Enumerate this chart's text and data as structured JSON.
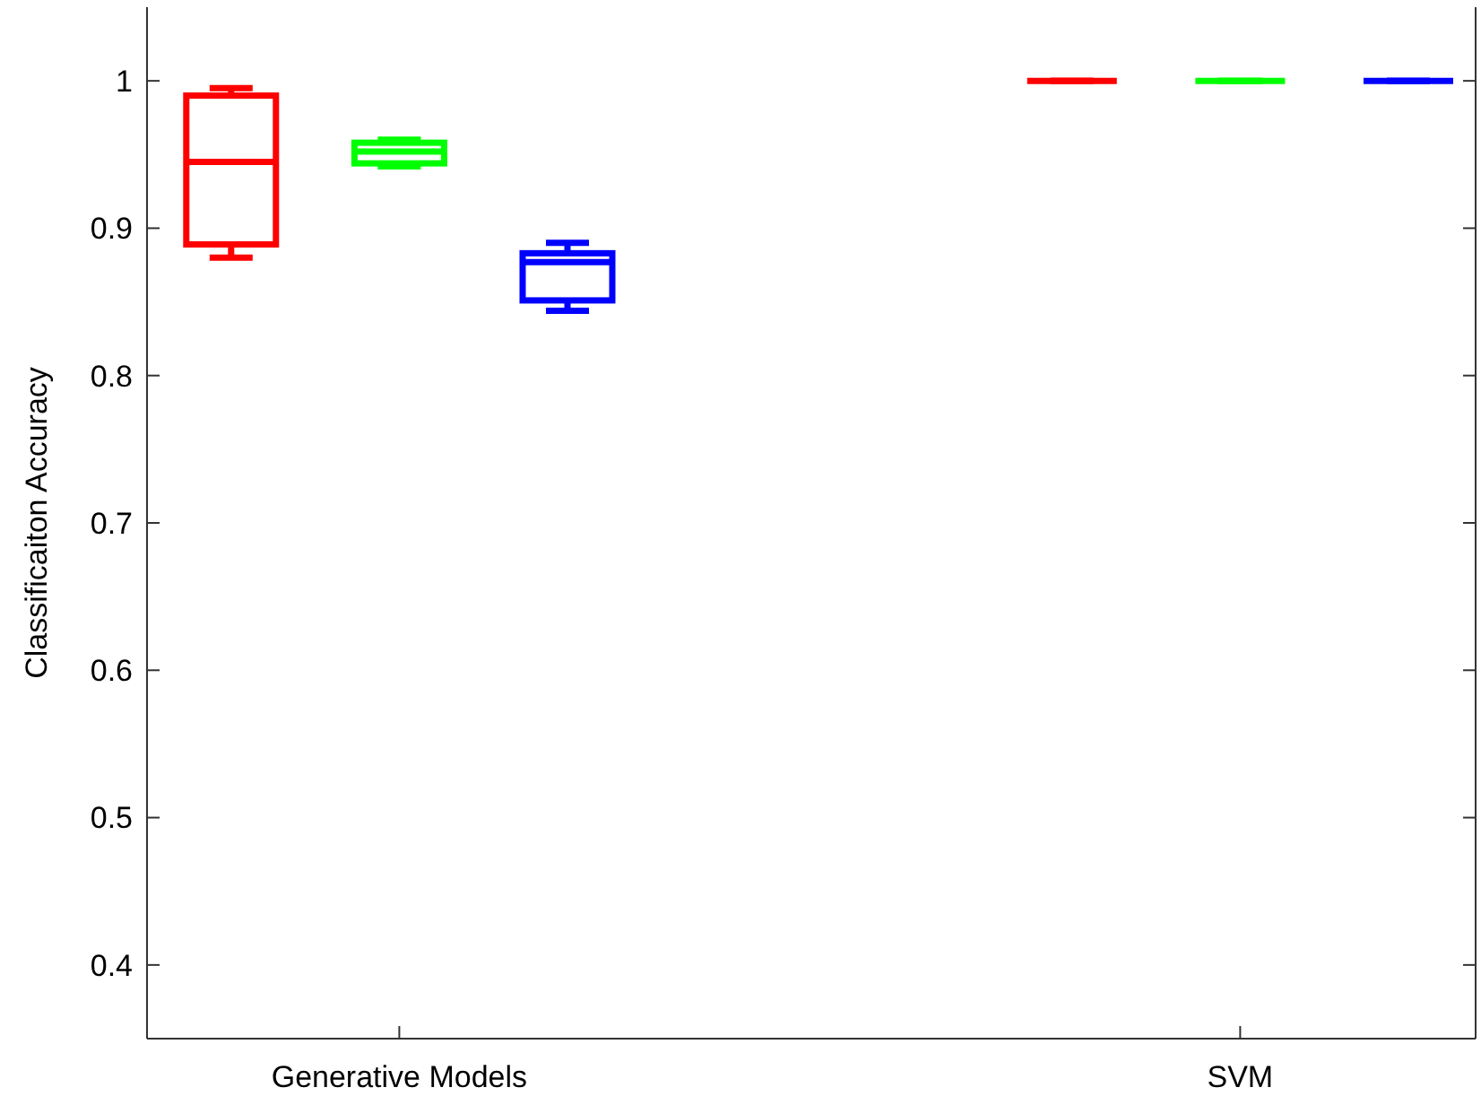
{
  "chart_data": {
    "type": "box",
    "ylabel": "Classificaiton Accuracy",
    "categories": [
      "Generative Models",
      "SVM"
    ],
    "ylim": [
      0.35,
      1.05
    ],
    "yticks": [
      0.4,
      0.5,
      0.6,
      0.7,
      0.8,
      0.9,
      1
    ],
    "series": [
      {
        "color": "#ff0000",
        "boxes": [
          {
            "low": 0.88,
            "q1": 0.889,
            "median": 0.945,
            "q3": 0.99,
            "high": 0.995
          },
          {
            "low": 1,
            "q1": 1,
            "median": 1,
            "q3": 1,
            "high": 1
          }
        ]
      },
      {
        "color": "#00ff00",
        "boxes": [
          {
            "low": 0.942,
            "q1": 0.944,
            "median": 0.952,
            "q3": 0.958,
            "high": 0.96
          },
          {
            "low": 1,
            "q1": 1,
            "median": 1,
            "q3": 1,
            "high": 1
          }
        ]
      },
      {
        "color": "#0000ff",
        "boxes": [
          {
            "low": 0.844,
            "q1": 0.851,
            "median": 0.877,
            "q3": 0.883,
            "high": 0.89
          },
          {
            "low": 1,
            "q1": 1,
            "median": 1,
            "q3": 1,
            "high": 1
          }
        ]
      }
    ]
  }
}
